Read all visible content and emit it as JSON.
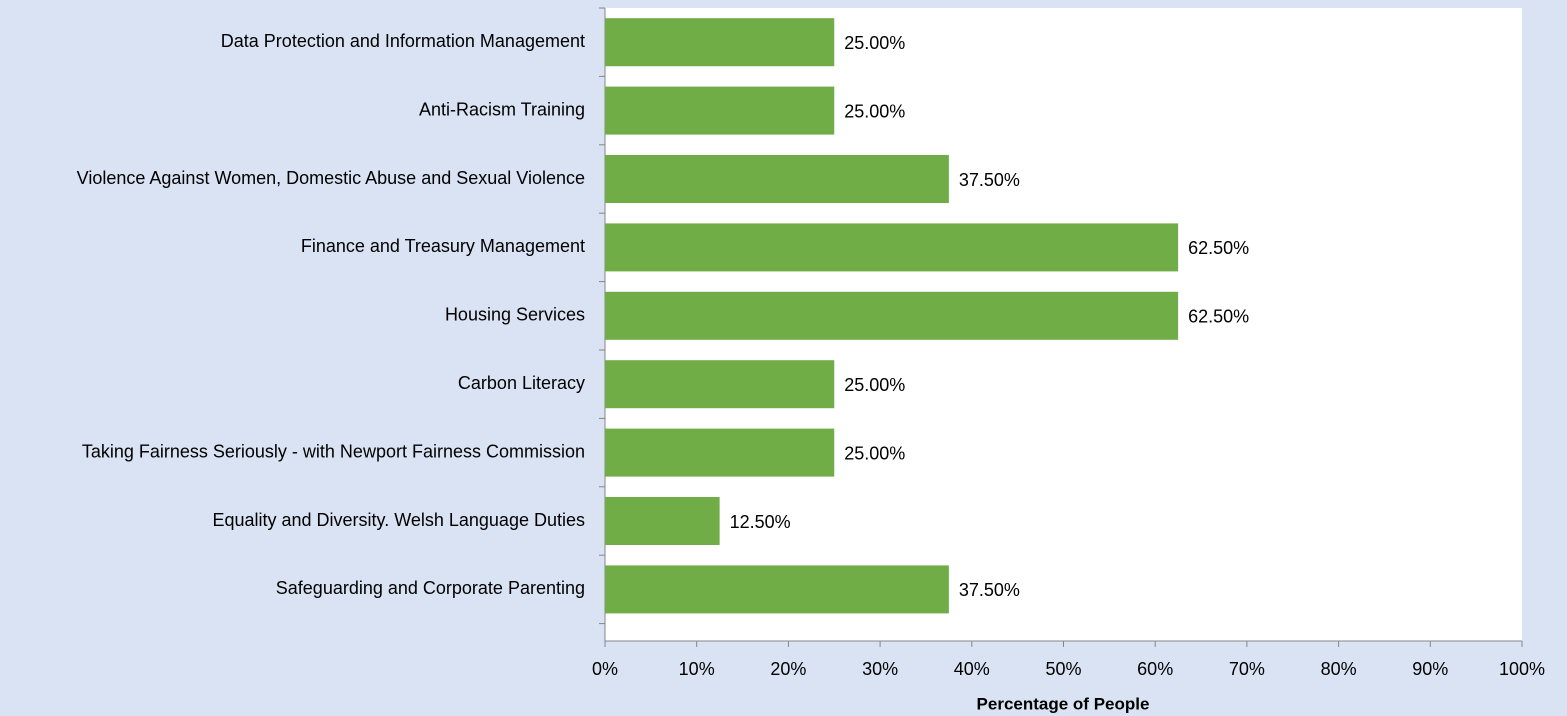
{
  "chart_data": {
    "type": "bar",
    "orientation": "horizontal",
    "x_axis_label": "Percentage of People",
    "categories": [
      "Data Protection and Information Management",
      "Anti-Racism Training",
      "Violence Against Women, Domestic Abuse and Sexual Violence",
      "Finance and Treasury Management",
      "Housing Services",
      "Carbon Literacy",
      "Taking Fairness Seriously - with Newport Fairness Commission",
      "Equality and Diversity. Welsh Language Duties",
      "Safeguarding and Corporate Parenting"
    ],
    "values": [
      25,
      25,
      37.5,
      62.5,
      62.5,
      25,
      25,
      12.5,
      37.5
    ],
    "value_labels": [
      "25.00%",
      "25.00%",
      "37.50%",
      "62.50%",
      "62.50%",
      "25.00%",
      "25.00%",
      "12.50%",
      "37.50%"
    ],
    "color": "#70ad47",
    "xlim": [
      0,
      100
    ],
    "xticks": [
      {
        "value": 0,
        "label": "0%"
      },
      {
        "value": 10,
        "label": "10%"
      },
      {
        "value": 20,
        "label": "20%"
      },
      {
        "value": 30,
        "label": "30%"
      },
      {
        "value": 40,
        "label": "40%"
      },
      {
        "value": 50,
        "label": "50%"
      },
      {
        "value": 60,
        "label": "60%"
      },
      {
        "value": 70,
        "label": "70%"
      },
      {
        "value": 80,
        "label": "80%"
      },
      {
        "value": 90,
        "label": "90%"
      },
      {
        "value": 100,
        "label": "100%"
      }
    ],
    "grid": false
  }
}
